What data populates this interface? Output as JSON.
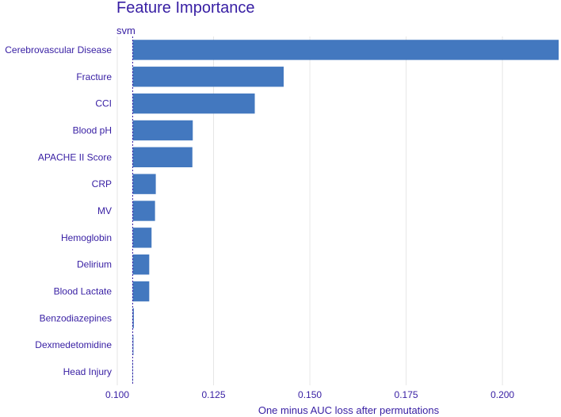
{
  "chart_data": {
    "type": "bar",
    "orientation": "horizontal",
    "title": "Feature Importance",
    "subtitle": "svm",
    "xlabel": "One minus AUC loss after permutations",
    "ylabel": "",
    "xlim": [
      0.1,
      0.215
    ],
    "baseline": 0.104,
    "xticks": [
      "0.100",
      "0.125",
      "0.150",
      "0.175",
      "0.200"
    ],
    "xtick_values": [
      0.1,
      0.125,
      0.15,
      0.175,
      0.2
    ],
    "grid": true,
    "bar_color": "#4378bf",
    "text_color": "#371ea3",
    "categories": [
      "Cerebrovascular Disease",
      "Fracture",
      "CCI",
      "Blood pH",
      "APACHE II Score",
      "CRP",
      "MV",
      "Hemoglobin",
      "Delirium",
      "Blood Lactate",
      "Benzodiazepines",
      "Dexmedetomidine",
      "Head Injury"
    ],
    "values": [
      0.2146,
      0.1432,
      0.1357,
      0.1196,
      0.1195,
      0.11,
      0.1098,
      0.1089,
      0.1083,
      0.1083,
      0.1043,
      0.1042,
      0.1041
    ]
  }
}
